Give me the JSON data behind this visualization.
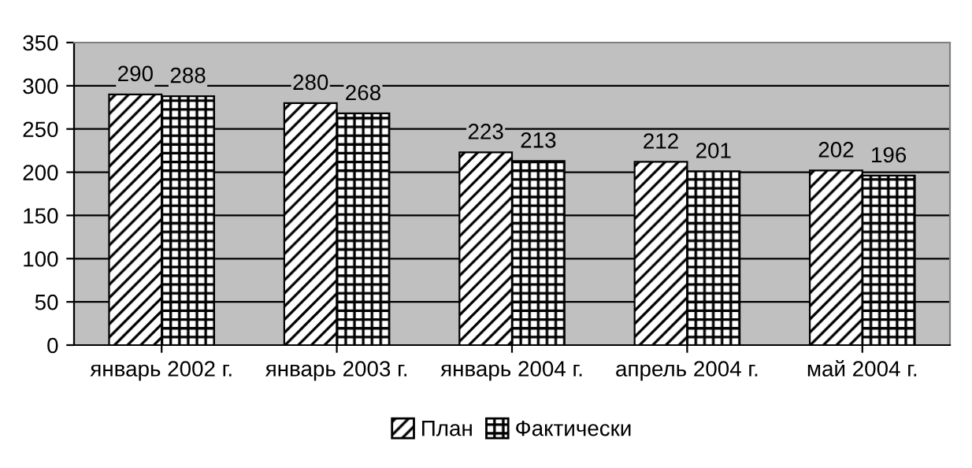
{
  "chart_data": {
    "type": "bar",
    "categories": [
      "январь 2002 г.",
      "январь 2003 г.",
      "январь 2004 г.",
      "апрель 2004 г.",
      "май 2004 г."
    ],
    "series": [
      {
        "name": "План",
        "color": "#000000",
        "values": [
          290,
          280,
          223,
          212,
          202
        ]
      },
      {
        "name": "Фактически",
        "color": "#000000",
        "values": [
          288,
          268,
          213,
          201,
          196
        ]
      }
    ],
    "ylim": [
      0,
      350
    ],
    "yticks": [
      0,
      50,
      100,
      150,
      200,
      250,
      300,
      350
    ],
    "grid": "y",
    "legend": "bottom",
    "data_labels": true
  }
}
